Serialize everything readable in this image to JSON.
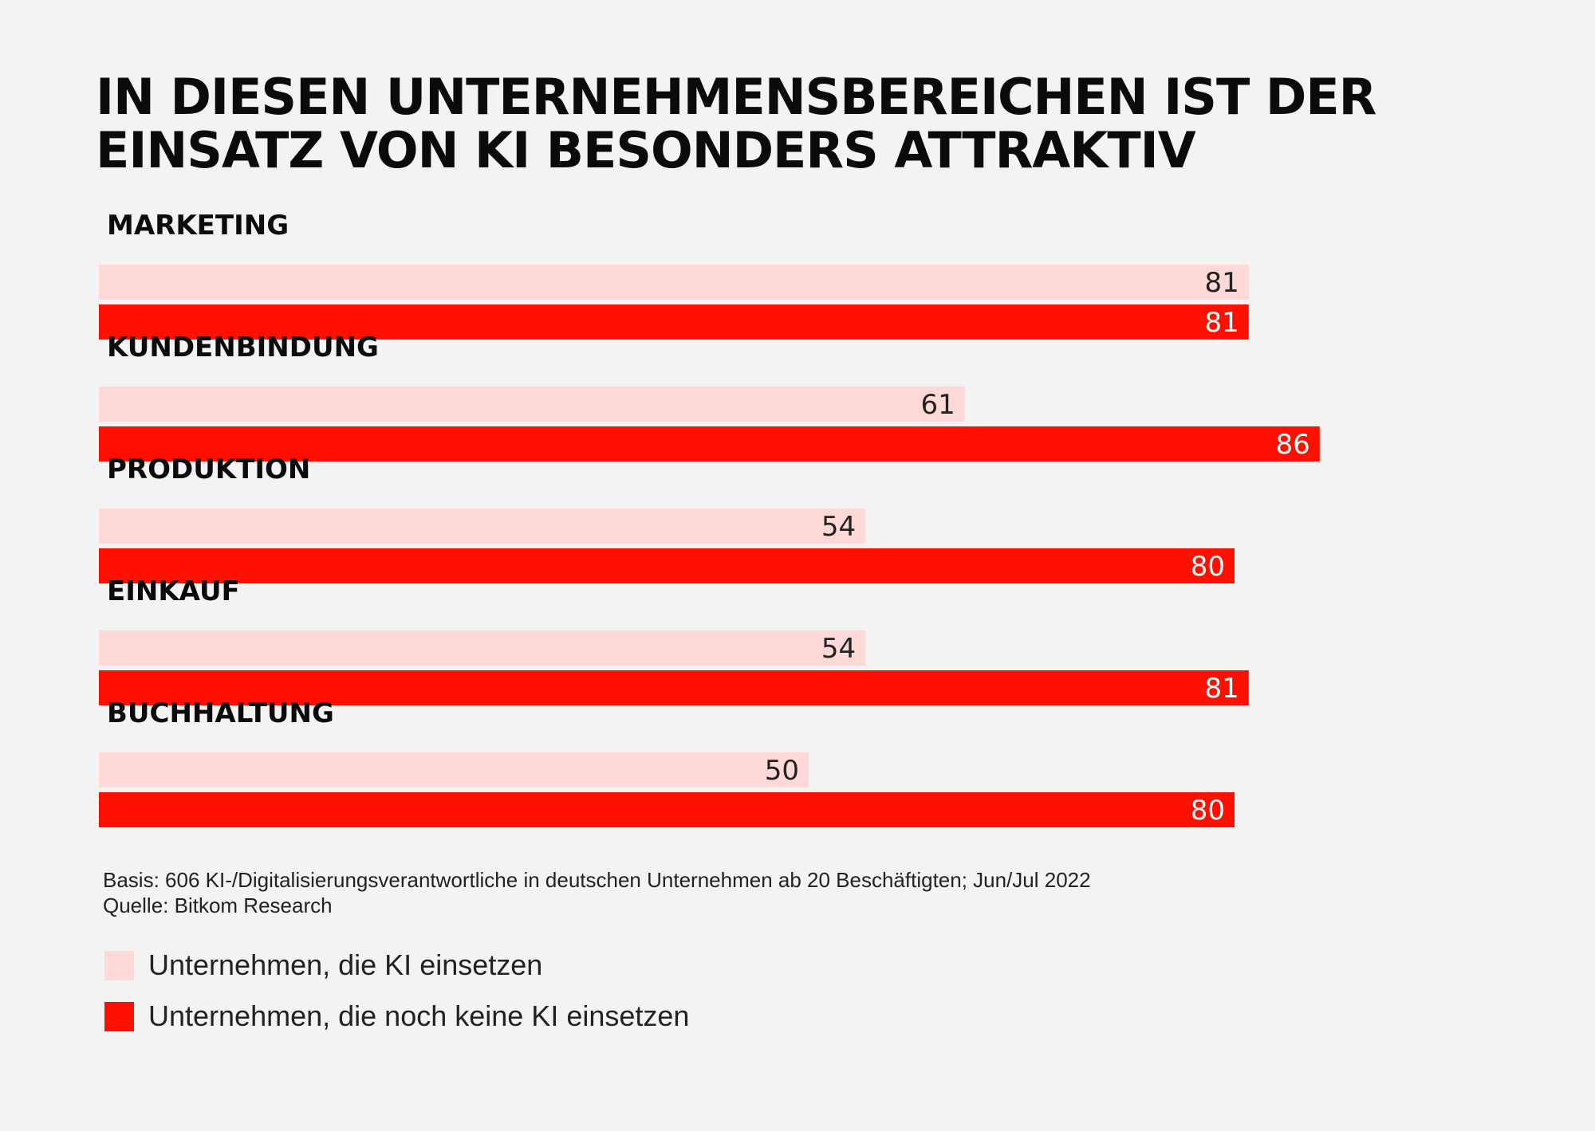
{
  "title_lines": [
    "IN DIESEN UNTERNEHMENSBEREICHEN IST DER",
    "EINSATZ VON KI BESONDERS ATTRAKTIV"
  ],
  "chart_data": {
    "type": "bar",
    "orientation": "horizontal",
    "title": "IN DIESEN UNTERNEHMENSBEREICHEN IST DER EINSATZ VON KI BESONDERS ATTRAKTIV",
    "categories": [
      "MARKETING",
      "KUNDENBINDUNG",
      "PRODUKTION",
      "EINKAUF",
      "BUCHHALTUNG"
    ],
    "series": [
      {
        "name": "Unternehmen, die KI einsetzen",
        "color": "#ffd9d8",
        "label_color": "#222222",
        "values": [
          81,
          61,
          54,
          54,
          50
        ]
      },
      {
        "name": "Unternehmen, die noch keine KI einsetzen",
        "color": "#ff0f00",
        "label_color": "#ffffff",
        "values": [
          81,
          86,
          80,
          81,
          80
        ]
      }
    ],
    "unit": "%",
    "xlim": [
      0,
      100
    ],
    "grid": false,
    "legend_position": "bottom-left"
  },
  "notes": {
    "basis": "Basis: 606 KI-/Digitalisierungsverantwortliche in deutschen Unternehmen ab 20 Beschäftigten; Jun/Jul 2022",
    "source": "Quelle: Bitkom Research"
  },
  "legend": [
    {
      "label": "Unternehmen, die KI einsetzen",
      "color": "#ffd9d8"
    },
    {
      "label": "Unternehmen, die noch keine KI einsetzen",
      "color": "#ff0f00"
    }
  ]
}
